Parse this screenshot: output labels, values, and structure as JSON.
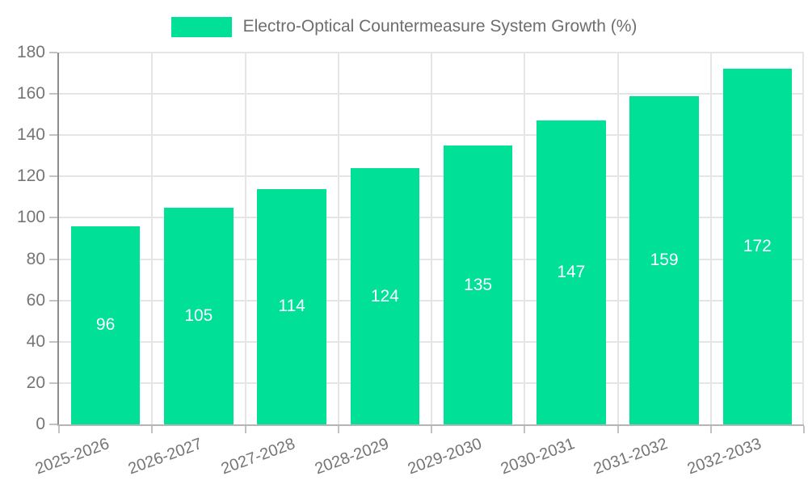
{
  "chart_data": {
    "type": "bar",
    "title": "Electro-Optical Countermeasure System Growth (%)",
    "categories": [
      "2025-2026",
      "2026-2027",
      "2027-2028",
      "2028-2029",
      "2029-2030",
      "2030-2031",
      "2031-2032",
      "2032-2033"
    ],
    "values": [
      96,
      105,
      114,
      124,
      135,
      147,
      159,
      172
    ],
    "xlabel": "",
    "ylabel": "",
    "ylim": [
      0,
      180
    ],
    "yticks": [
      0,
      20,
      40,
      60,
      80,
      100,
      120,
      140,
      160,
      180
    ],
    "grid": true,
    "legend_position": "top",
    "bar_value_labels": "inside-center"
  },
  "colors": {
    "bar": "#00E096",
    "bar_label": "#FFFFFF",
    "axis_text": "#757575",
    "legend_text": "#6E6E6E",
    "grid_line": "#E5E5E5",
    "axis_line_y": "#8D8D8D",
    "axis_line_x": "#B5B5B5",
    "tick_line": "#C2C2C2",
    "background": "#FFFFFF"
  }
}
